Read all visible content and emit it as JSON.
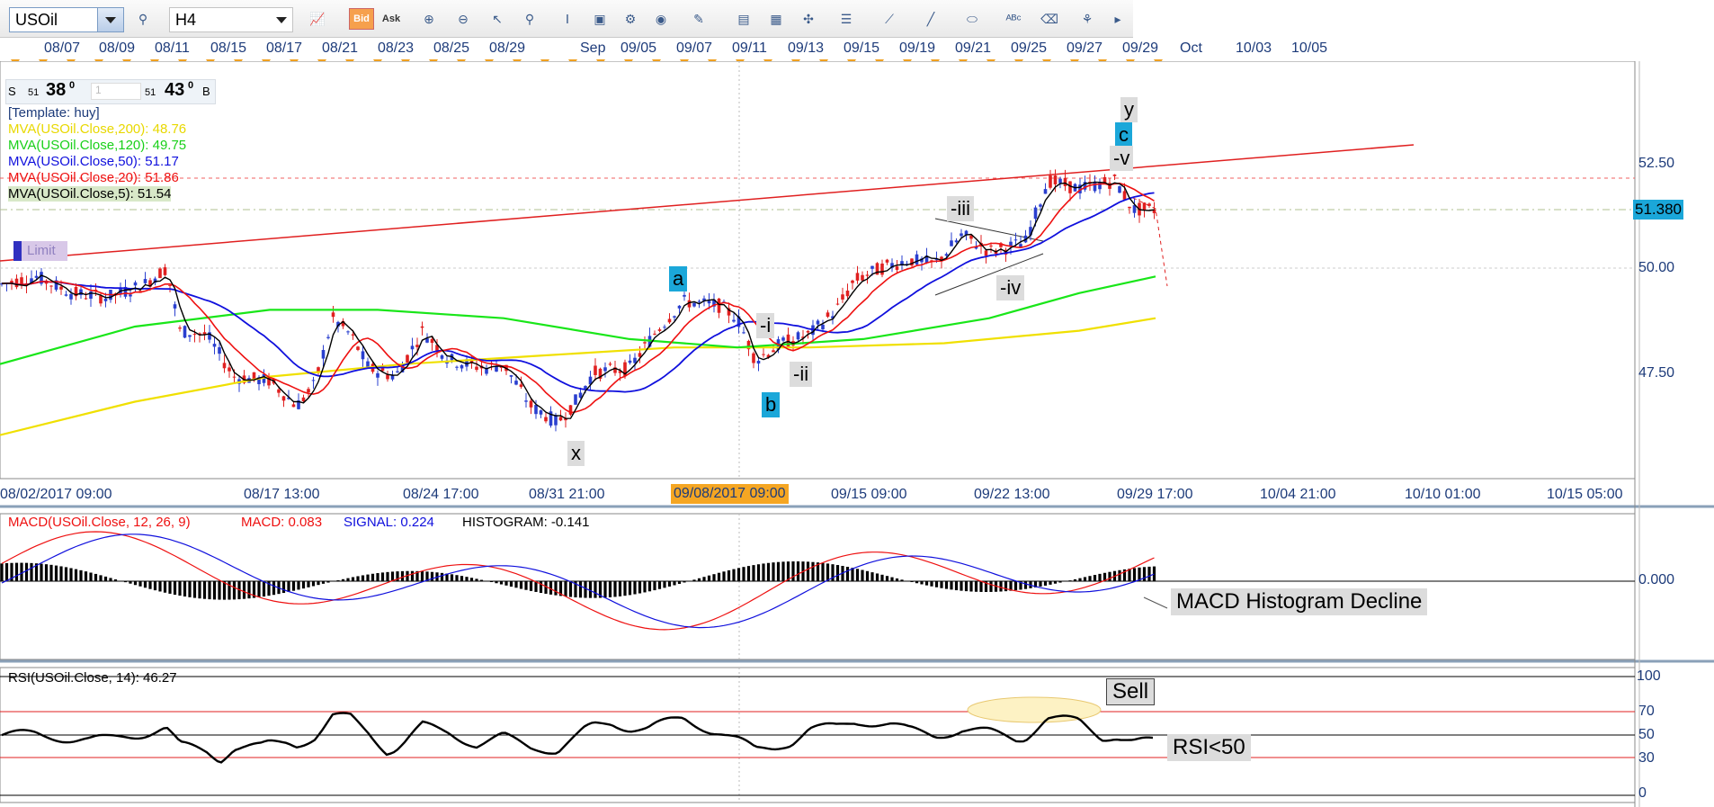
{
  "toolbar": {
    "symbol": "USOil",
    "period": "H4",
    "bid_label": "Bid",
    "ask_label": "Ask",
    "icons": [
      "line-chart-icon",
      "bid-icon",
      "ask-icon",
      "zoom-in-icon",
      "zoom-out-icon",
      "cursor-icon",
      "chart-type-icon",
      "indicator-icon",
      "settings-icon",
      "globe-icon",
      "ruler-icon",
      "image-icon",
      "template-icon",
      "draw-line-icon",
      "trend-icon",
      "pen-icon",
      "ellipse-icon",
      "text-icon",
      "eraser-icon",
      "tree-icon"
    ]
  },
  "date_axis_top": [
    "08/07",
    "08/09",
    "08/11",
    "08/15",
    "08/17",
    "08/21",
    "08/23",
    "08/25",
    "08/29",
    "Sep",
    "09/05",
    "09/07",
    "09/11",
    "09/13",
    "09/15",
    "09/19",
    "09/21",
    "09/25",
    "09/27",
    "09/29",
    "Oct",
    "10/03",
    "10/05"
  ],
  "price_axis": [
    "52.50",
    "50.00",
    "47.50"
  ],
  "current_price": "51.380",
  "time_axis": [
    "08/02/2017 09:00",
    "08/17 13:00",
    "08/24 17:00",
    "08/31 21:00",
    "09/08/2017 09:00",
    "09/15 09:00",
    "09/22 13:00",
    "09/29 17:00",
    "10/04 21:00",
    "10/10 01:00",
    "10/15 05:00"
  ],
  "quote": {
    "s_label": "S",
    "s_small": "51",
    "s_big": "38",
    "s_sup": "0",
    "lot": "1",
    "b_small": "51",
    "b_big": "43",
    "b_sup": "0",
    "b_label": "B"
  },
  "indicators": {
    "template": "[Template: huy]",
    "ma200": "MVA(USOil.Close,200): 48.76",
    "ma120": "MVA(USOil.Close,120): 49.75",
    "ma50": "MVA(USOil.Close,50): 51.17",
    "ma20": "MVA(USOil.Close,20): 51.86",
    "ma5": "MVA(USOil.Close,5): 51.54",
    "limit": "Limit"
  },
  "waves": {
    "a": "a",
    "b": "b",
    "c": "c",
    "x": "x",
    "y": "y",
    "i": "-i",
    "ii": "-ii",
    "iii": "-iii",
    "iv": "-iv",
    "v": "-v"
  },
  "macd": {
    "title": "MACD(USOil.Close, 12, 26, 9)",
    "macd": "MACD: 0.083",
    "signal": "SIGNAL: 0.224",
    "histogram": "HISTOGRAM: -0.141",
    "zero": "0.000",
    "annotation": "MACD Histogram Decline"
  },
  "rsi": {
    "title": "RSI(USOil.Close, 14): 46.27",
    "levels": [
      "100",
      "70",
      "50",
      "30",
      "0"
    ],
    "annotation_sell": "Sell",
    "annotation_below": "RSI<50"
  },
  "colors": {
    "ma200": "#f0e000",
    "ma120": "#19e619",
    "ma50": "#1010dd",
    "ma20": "#ee1111",
    "ma5": "#000000",
    "accent": "#1ba7d9",
    "time_highlight": "#f5a623"
  }
}
